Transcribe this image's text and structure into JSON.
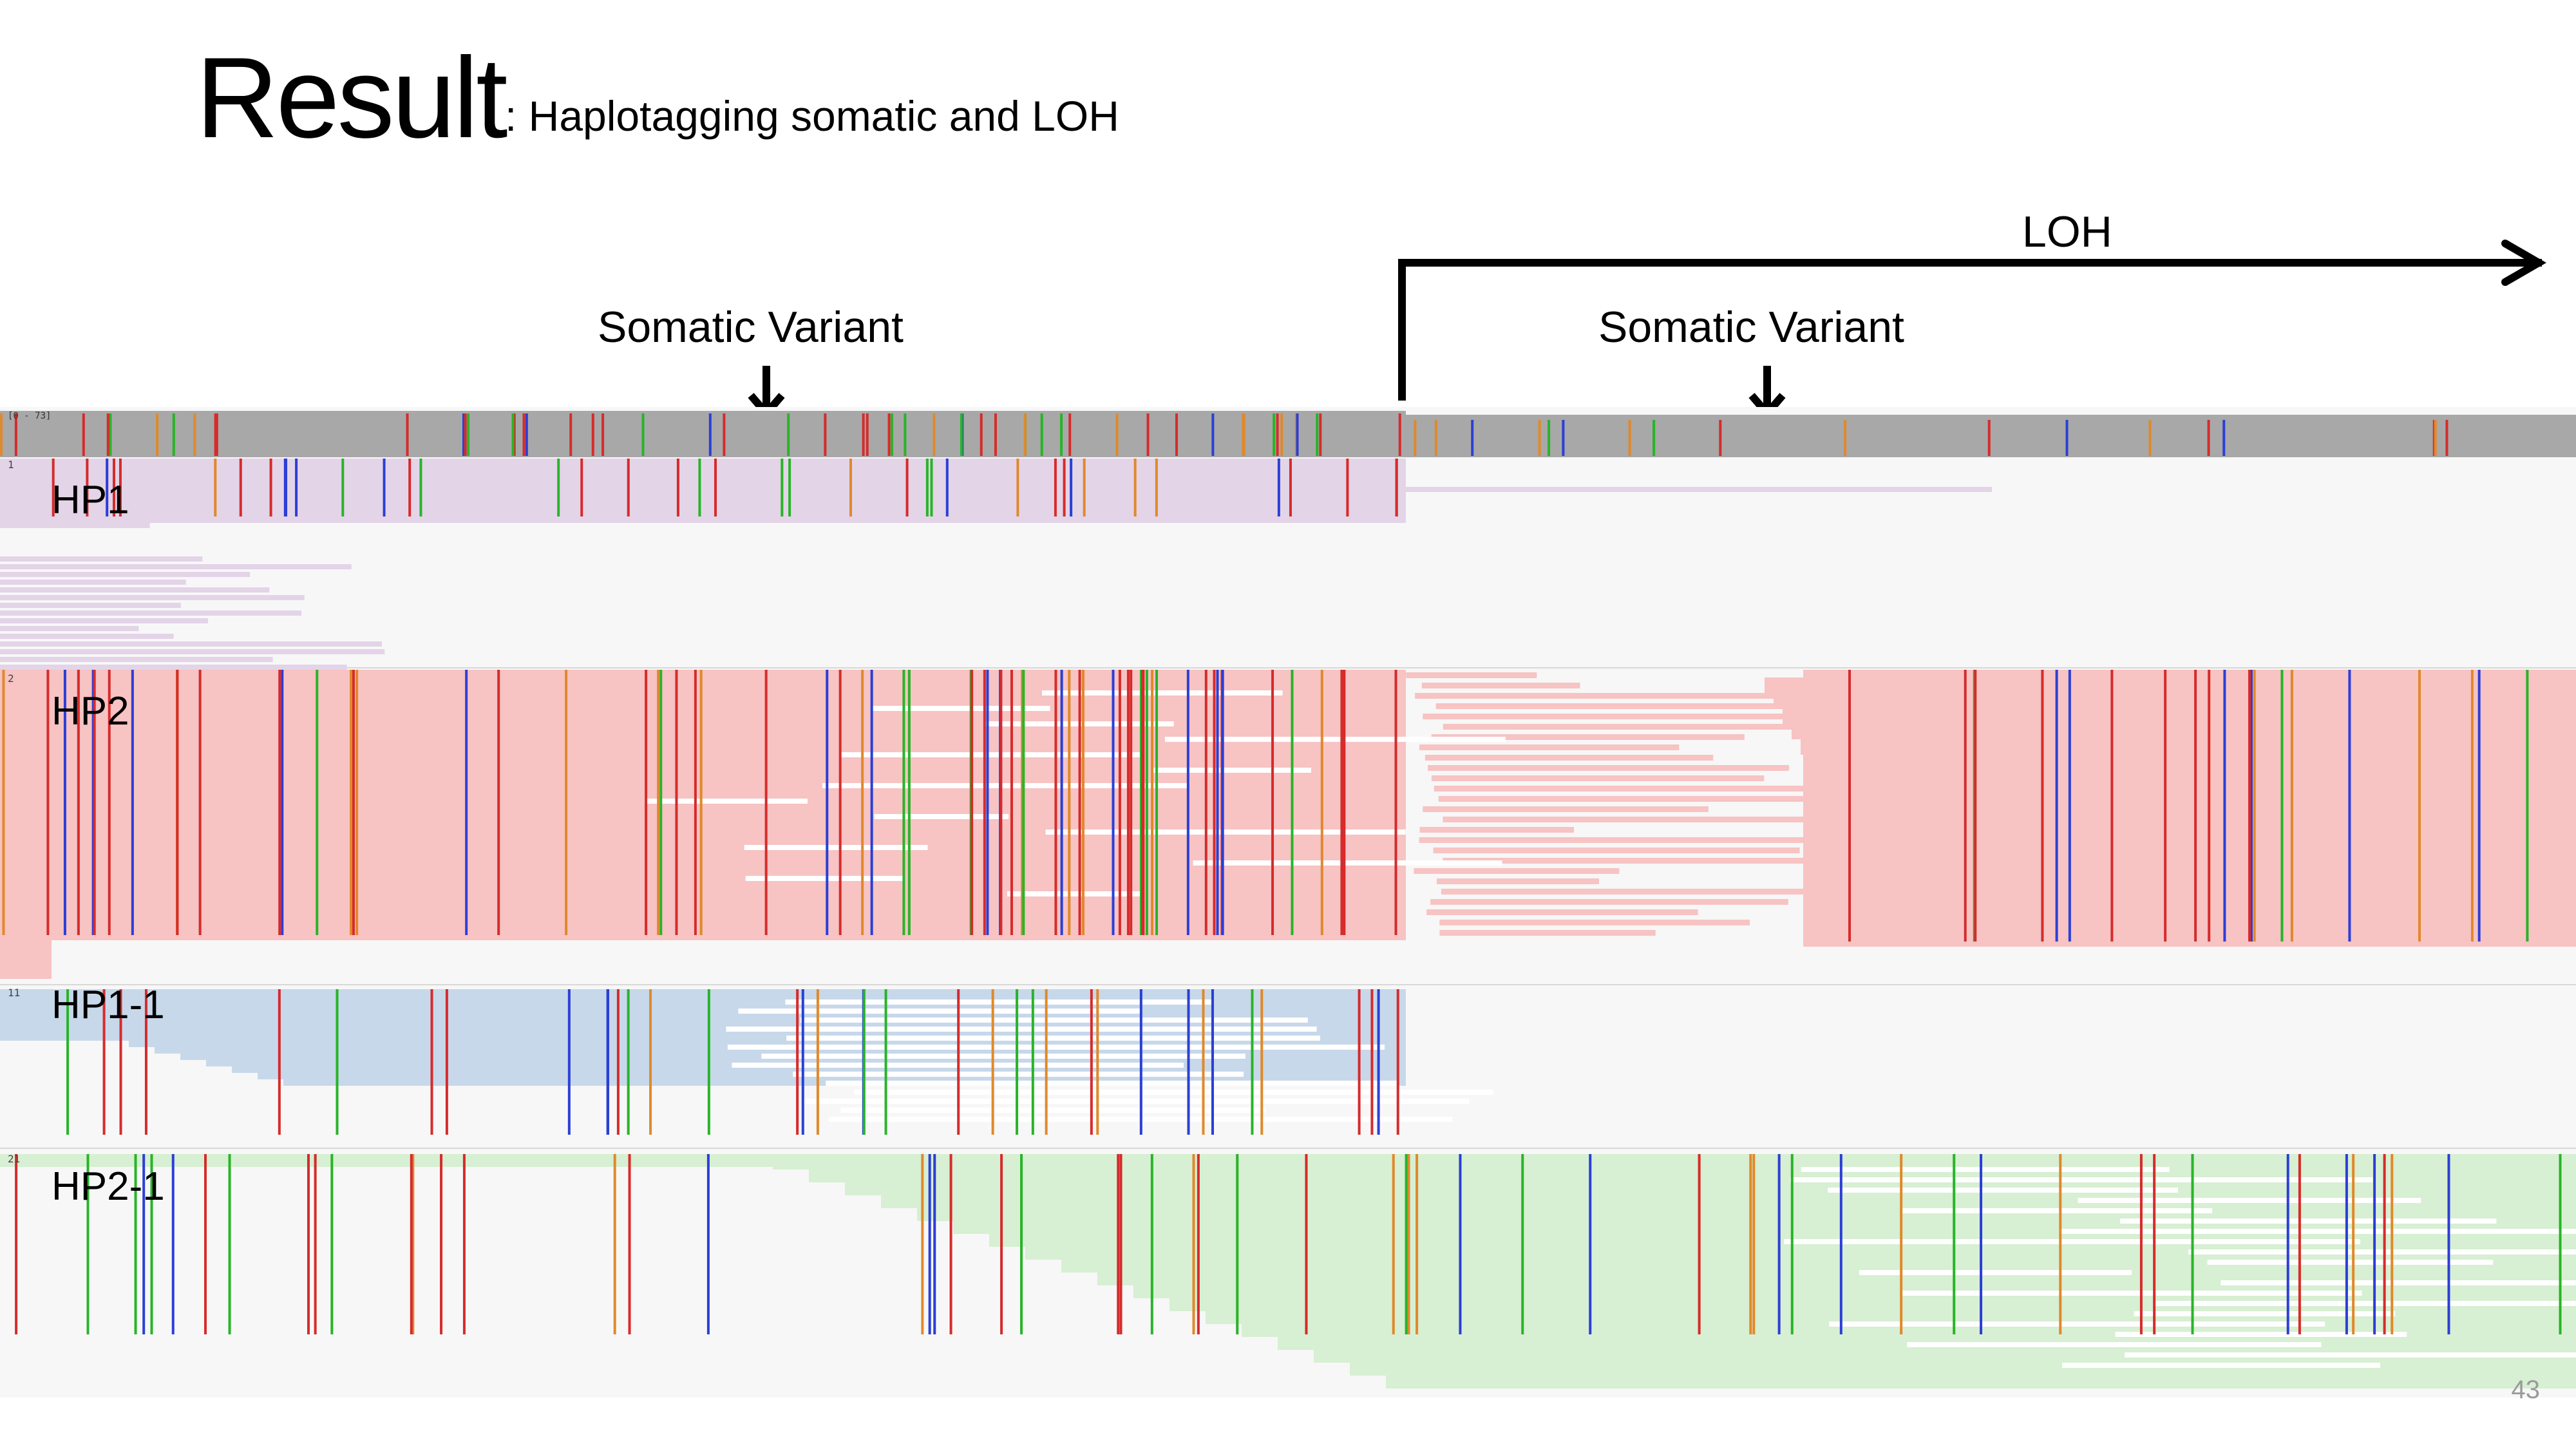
{
  "slide": {
    "title": "Result",
    "subtitle": ": Haplotagging somatic and LOH",
    "page_number": "43"
  },
  "annotations": {
    "loh": "LOH",
    "somatic_left": "Somatic Variant",
    "somatic_right": "Somatic Variant"
  },
  "tracks": {
    "coverage_scale": "[0 - 73]",
    "hp1": {
      "label": "HP1",
      "index": "1",
      "color": "#e3d4e8"
    },
    "hp2": {
      "label": "HP2",
      "index": "2",
      "color": "#f7c3c3"
    },
    "hp1_1": {
      "label": "HP1-1",
      "index": "11",
      "color": "#c7d8ea"
    },
    "hp2_1": {
      "label": "HP2-1",
      "index": "21",
      "color": "#d7efd2"
    }
  },
  "colors": {
    "coverage": "#a8a8a8",
    "mismatch_red": "#d62b2b",
    "mismatch_green": "#28b428",
    "mismatch_blue": "#2b3fd6",
    "mismatch_orange": "#e0892b"
  }
}
